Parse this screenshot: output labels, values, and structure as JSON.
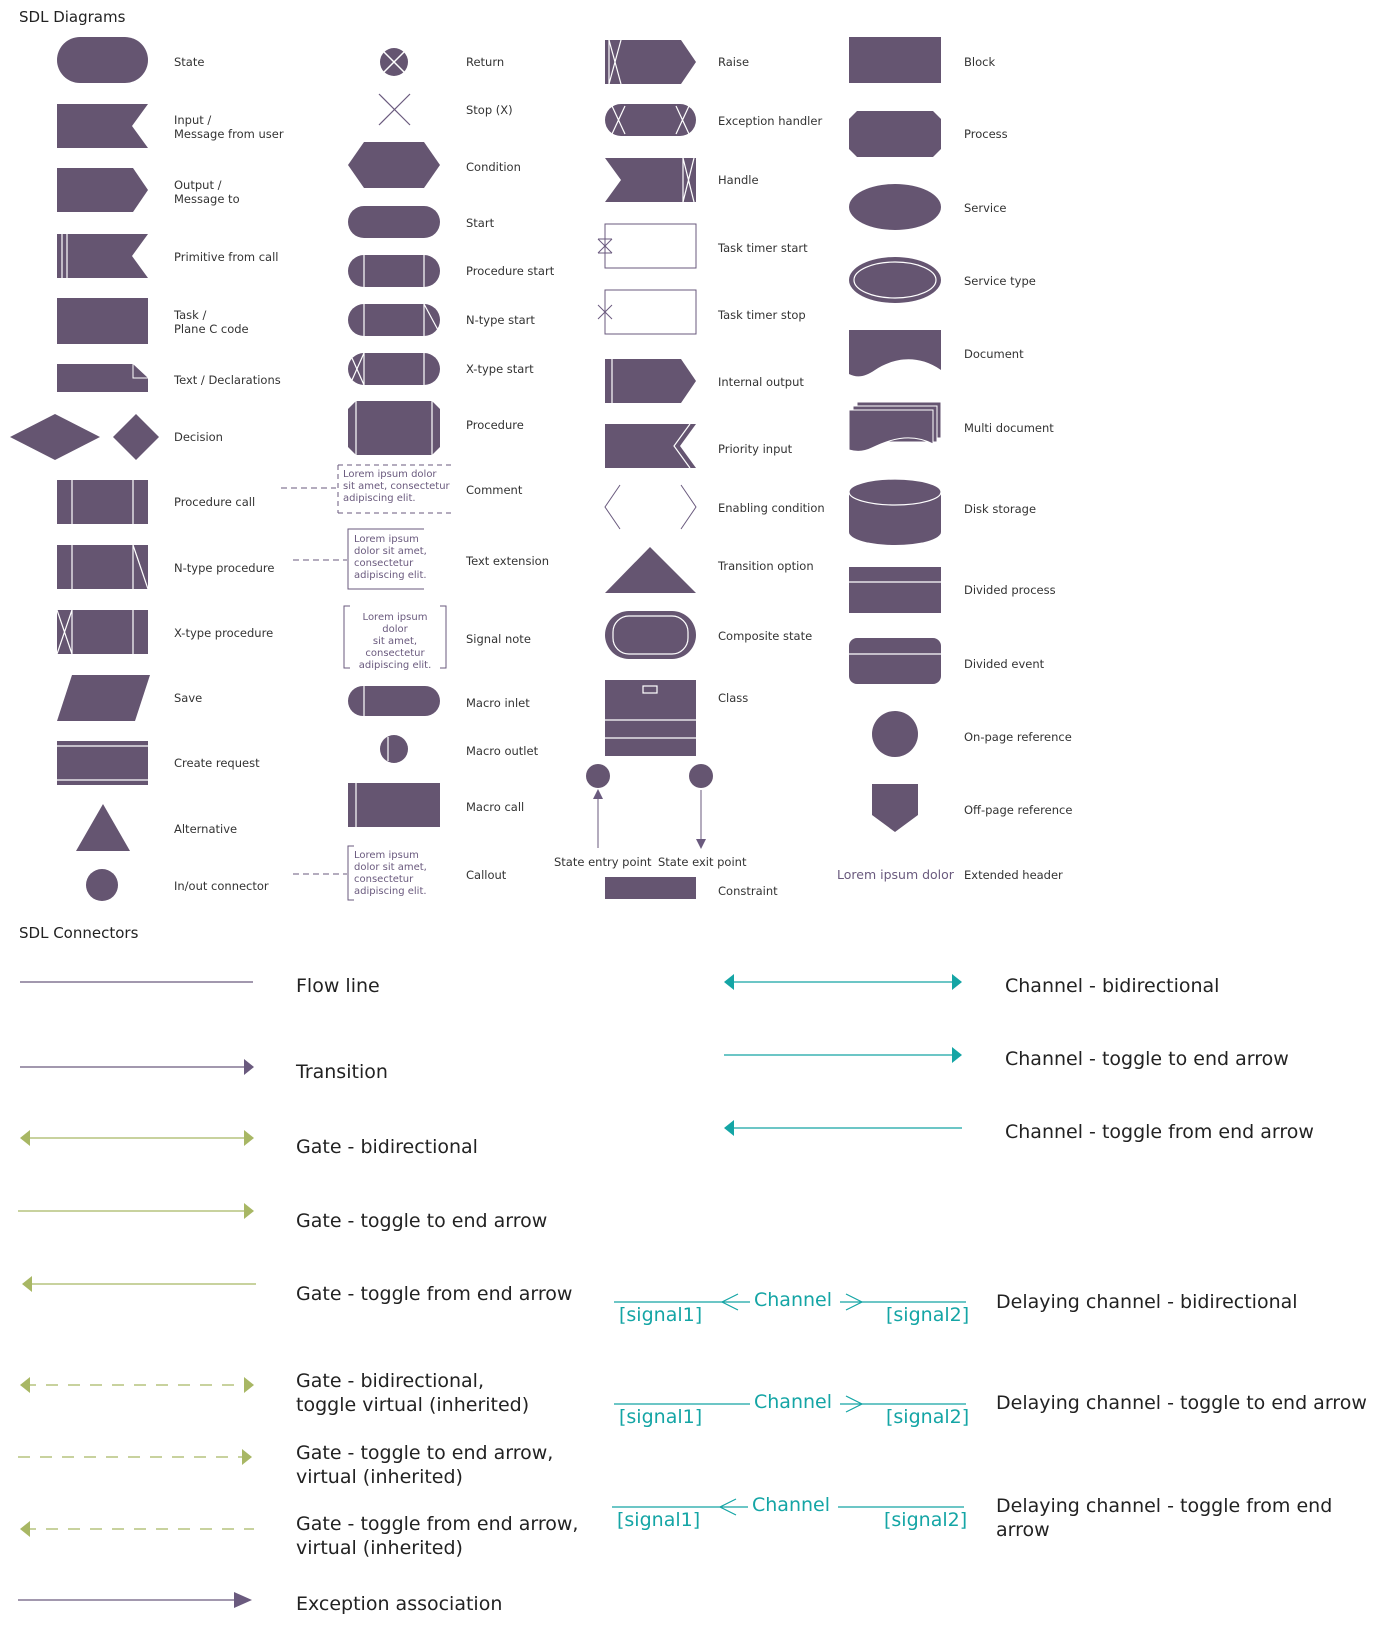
{
  "colors": {
    "shape": "#655571",
    "gate": "#a8b764",
    "channel": "#14a5a5",
    "line": "#6a5a7e"
  },
  "titles": {
    "diagrams": "SDL Diagrams",
    "connectors": "SDL Connectors"
  },
  "col1": {
    "state": "State",
    "input": "Input /\nMessage from user",
    "output": "Output /\nMessage to",
    "primitive": "Primitive from call",
    "task": "Task /\nPlane C code",
    "text": "Text / Declarations",
    "decision": "Decision",
    "procedure_call": "Procedure call",
    "ntype_procedure": "N-type procedure",
    "xtype_procedure": "X-type procedure",
    "save": "Save",
    "create_request": "Create request",
    "alternative": "Alternative",
    "inout": "In/out connector"
  },
  "col2": {
    "return": "Return",
    "stop": "Stop (X)",
    "condition": "Condition",
    "start": "Start",
    "procedure_start": "Procedure start",
    "ntype_start": "N-type start",
    "xtype_start": "X-type start",
    "procedure": "Procedure",
    "comment": "Comment",
    "text_extension": "Text extension",
    "signal_note": "Signal note",
    "macro_inlet": "Macro inlet",
    "macro_outlet": "Macro outlet",
    "macro_call": "Macro call",
    "callout": "Callout"
  },
  "notes": {
    "comment": "Lorem ipsum dolor\nsit amet, consectetur\nadipiscing elit.",
    "text_extension": "Lorem ipsum\ndolor sit amet,\nconsectetur\nadipiscing elit.",
    "signal_note": "Lorem ipsum dolor\nsit amet,\nconsectetur\nadipiscing elit.",
    "callout": "Lorem ipsum\ndolor sit amet,\nconsectetur\nadipiscing elit."
  },
  "col3": {
    "raise": "Raise",
    "exception_handler": "Exception handler",
    "handle": "Handle",
    "task_timer_start": "Task timer start",
    "task_timer_stop": "Task timer stop",
    "internal_output": "Internal output",
    "priority_input": "Priority input",
    "enabling_condition": "Enabling condition",
    "transition_option": "Transition option",
    "composite_state": "Composite state",
    "class": "Class",
    "state_entry_point": "State entry point",
    "state_exit_point": "State exit point",
    "constraint": "Constraint"
  },
  "col4": {
    "block": "Block",
    "process": "Process",
    "service": "Service",
    "service_type": "Service type",
    "document": "Document",
    "multi_document": "Multi document",
    "disk_storage": "Disk storage",
    "divided_process": "Divided process",
    "divided_event": "Divided event",
    "onpage": "On-page reference",
    "offpage": "Off-page reference",
    "extended_header_text": "Lorem ipsum dolor",
    "extended_header": "Extended header"
  },
  "connectors_left": {
    "flow_line": "Flow line",
    "transition": "Transition",
    "gate_bi": "Gate - bidirectional",
    "gate_to": "Gate - toggle to end arrow",
    "gate_from": "Gate - toggle from end arrow",
    "gate_bi_virtual": "Gate - bidirectional,\ntoggle virtual (inherited)",
    "gate_to_virtual": "Gate - toggle to end arrow,\nvirtual (inherited)",
    "gate_from_virtual": "Gate - toggle from end arrow,\nvirtual (inherited)",
    "exception_assoc": "Exception association"
  },
  "connectors_right": {
    "channel_bi": "Channel - bidirectional",
    "channel_to": "Channel - toggle to end arrow",
    "channel_from": "Channel - toggle from end arrow",
    "delay_bi": "Delaying channel - bidirectional",
    "delay_to": "Delaying channel - toggle to end arrow",
    "delay_from": "Delaying channel - toggle from end arrow"
  },
  "delay_labels": {
    "channel": "Channel",
    "signal1": "[signal1]",
    "signal2": "[signal2]"
  }
}
